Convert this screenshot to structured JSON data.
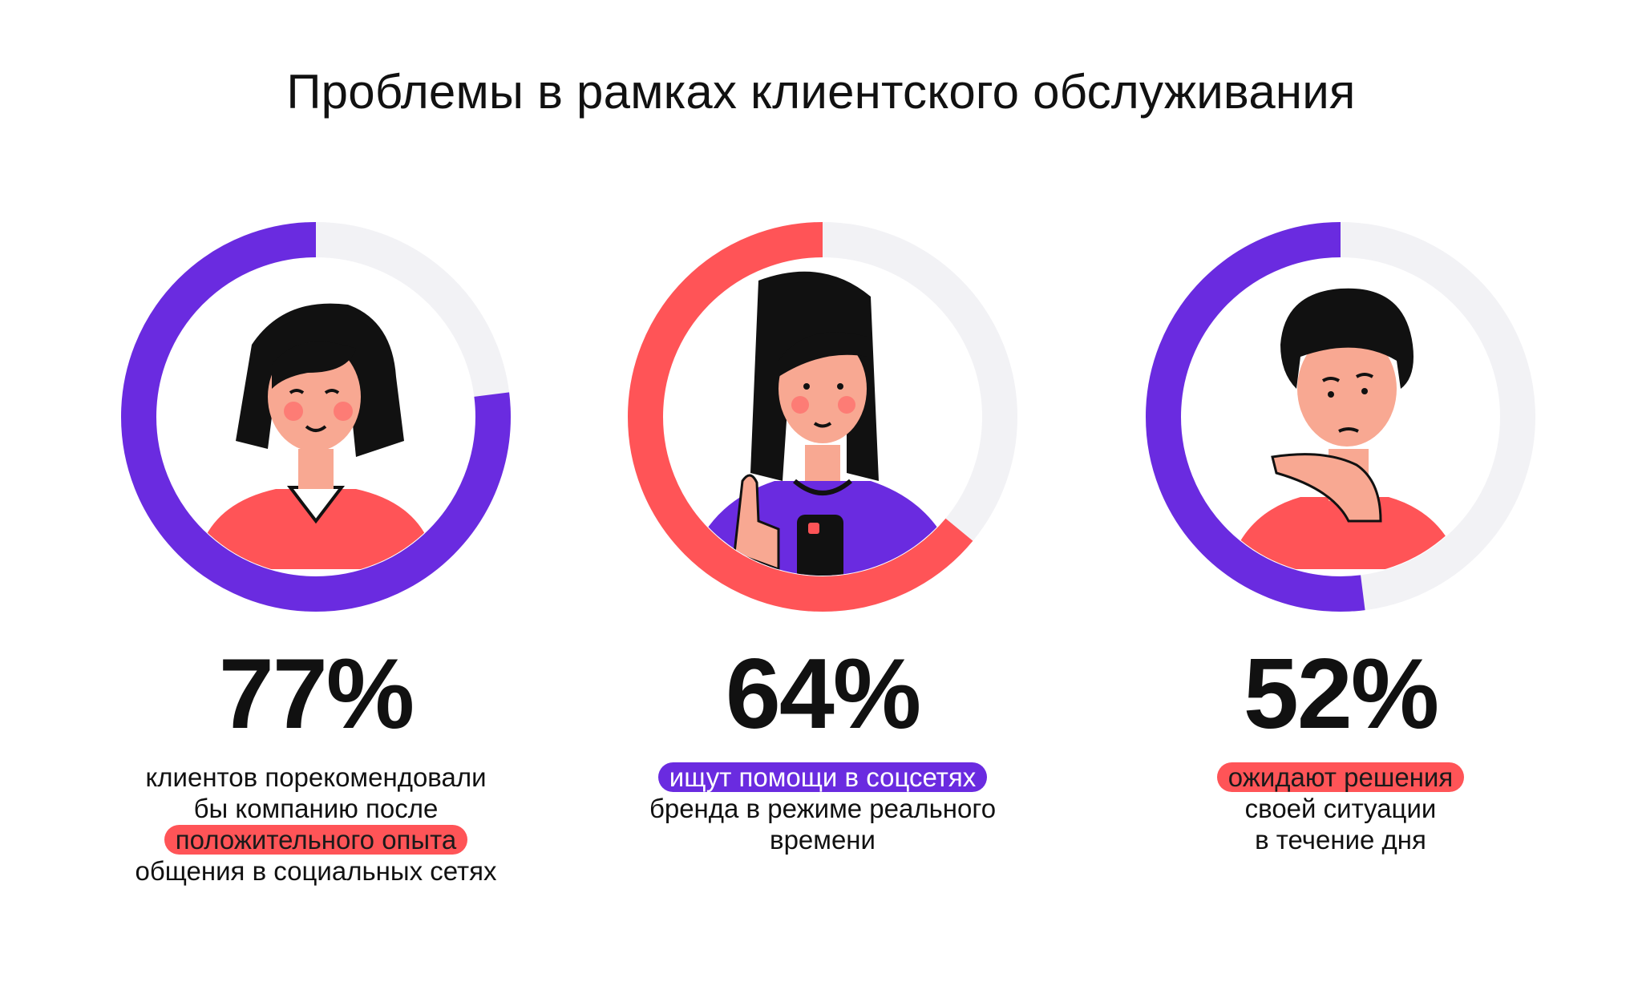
{
  "title": "Проблемы в рамках клиентского обслуживания",
  "colors": {
    "purple": "#6a2be0",
    "red": "#ff5457",
    "track": "#f2f2f5",
    "skin": "#f8a892"
  },
  "stats": [
    {
      "value": "77%",
      "color": "purple",
      "illustration": "woman-smiling-illustration",
      "lines": [
        {
          "text": "клиентов порекомендовали",
          "highlight": ""
        },
        {
          "text": "бы компанию после",
          "highlight": ""
        },
        {
          "text": "положительного опыта",
          "highlight": "red"
        },
        {
          "text": "общения в социальных сетях",
          "highlight": ""
        }
      ]
    },
    {
      "value": "64%",
      "color": "red",
      "illustration": "woman-with-phone-illustration",
      "lines": [
        {
          "text": "ищут помощи в соцсетях",
          "highlight": "purple"
        },
        {
          "text": "бренда в режиме реального",
          "highlight": ""
        },
        {
          "text": "времени",
          "highlight": ""
        }
      ]
    },
    {
      "value": "52%",
      "color": "purple",
      "illustration": "man-thinking-illustration",
      "lines": [
        {
          "text": "ожидают решения",
          "highlight": "red"
        },
        {
          "text": "своей ситуации",
          "highlight": ""
        },
        {
          "text": "в течение дня",
          "highlight": ""
        }
      ]
    }
  ],
  "chart_data": {
    "type": "pie",
    "categories": [
      "77%",
      "64%",
      "52%"
    ],
    "values": [
      77,
      64,
      52
    ]
  }
}
